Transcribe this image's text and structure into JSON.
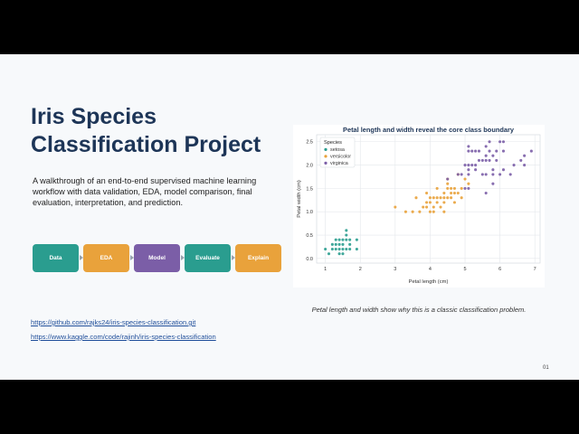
{
  "slide": {
    "title_lines": [
      "Iris Species",
      "Classification Project"
    ],
    "subtitle": "A walkthrough of an end-to-end supervised machine learning workflow with data validation, EDA, model comparison, final evaluation, interpretation, and prediction.",
    "pipeline": [
      {
        "label": "Data",
        "color": "#2a9d8f"
      },
      {
        "label": "EDA",
        "color": "#e9a23b"
      },
      {
        "label": "Model",
        "color": "#7b5ea7"
      },
      {
        "label": "Evaluate",
        "color": "#2a9d8f"
      },
      {
        "label": "Explain",
        "color": "#e9a23b"
      }
    ],
    "links": [
      "https://github.com/rajks24/iris-species-classification.git",
      "https://www.kaggle.com/code/rajinh/iris-species-classification"
    ],
    "caption": "Petal length and width show why this is a classic classification problem.",
    "page_number": "01"
  },
  "chart_data": {
    "type": "scatter",
    "title": "Petal length and width reveal the core class boundary",
    "xlabel": "Petal length (cm)",
    "ylabel": "Petal width (cm)",
    "xlim": [
      0.75,
      7.15
    ],
    "ylim": [
      -0.1,
      2.65
    ],
    "xticks": [
      "1",
      "2",
      "3",
      "4",
      "5",
      "6",
      "7"
    ],
    "yticks": [
      "0.0",
      "0.5",
      "1.0",
      "1.5",
      "2.0",
      "2.5"
    ],
    "grid": true,
    "legend_title": "Species",
    "legend_position": "top-left",
    "series": [
      {
        "name": "setosa",
        "color": "#2a9d8f",
        "points": [
          [
            1.0,
            0.2
          ],
          [
            1.1,
            0.1
          ],
          [
            1.2,
            0.2
          ],
          [
            1.3,
            0.2
          ],
          [
            1.3,
            0.3
          ],
          [
            1.4,
            0.2
          ],
          [
            1.4,
            0.1
          ],
          [
            1.4,
            0.3
          ],
          [
            1.5,
            0.2
          ],
          [
            1.5,
            0.1
          ],
          [
            1.5,
            0.4
          ],
          [
            1.6,
            0.2
          ],
          [
            1.6,
            0.4
          ],
          [
            1.6,
            0.6
          ],
          [
            1.7,
            0.4
          ],
          [
            1.7,
            0.3
          ],
          [
            1.9,
            0.2
          ],
          [
            1.9,
            0.4
          ],
          [
            1.6,
            0.5
          ],
          [
            1.5,
            0.3
          ],
          [
            1.3,
            0.4
          ],
          [
            1.4,
            0.4
          ],
          [
            1.7,
            0.2
          ],
          [
            1.2,
            0.3
          ]
        ]
      },
      {
        "name": "versicolor",
        "color": "#e9a23b",
        "points": [
          [
            3.0,
            1.1
          ],
          [
            3.3,
            1.0
          ],
          [
            3.5,
            1.0
          ],
          [
            3.6,
            1.3
          ],
          [
            3.7,
            1.0
          ],
          [
            3.8,
            1.1
          ],
          [
            3.9,
            1.1
          ],
          [
            3.9,
            1.2
          ],
          [
            3.9,
            1.4
          ],
          [
            4.0,
            1.0
          ],
          [
            4.0,
            1.2
          ],
          [
            4.0,
            1.3
          ],
          [
            4.1,
            1.0
          ],
          [
            4.1,
            1.3
          ],
          [
            4.2,
            1.2
          ],
          [
            4.2,
            1.3
          ],
          [
            4.2,
            1.5
          ],
          [
            4.3,
            1.3
          ],
          [
            4.4,
            1.2
          ],
          [
            4.4,
            1.3
          ],
          [
            4.4,
            1.4
          ],
          [
            4.5,
            1.3
          ],
          [
            4.5,
            1.5
          ],
          [
            4.5,
            1.6
          ],
          [
            4.6,
            1.3
          ],
          [
            4.6,
            1.4
          ],
          [
            4.6,
            1.5
          ],
          [
            4.7,
            1.2
          ],
          [
            4.7,
            1.4
          ],
          [
            4.7,
            1.5
          ],
          [
            4.8,
            1.4
          ],
          [
            4.8,
            1.8
          ],
          [
            4.9,
            1.5
          ],
          [
            5.0,
            1.7
          ],
          [
            5.1,
            1.6
          ],
          [
            4.5,
            1.7
          ],
          [
            4.4,
            1.0
          ],
          [
            4.3,
            1.1
          ],
          [
            4.1,
            1.1
          ],
          [
            4.9,
            1.3
          ]
        ]
      },
      {
        "name": "virginica",
        "color": "#7b5ea7",
        "points": [
          [
            4.5,
            1.7
          ],
          [
            4.8,
            1.8
          ],
          [
            4.9,
            1.8
          ],
          [
            5.0,
            1.5
          ],
          [
            5.0,
            2.0
          ],
          [
            5.1,
            1.5
          ],
          [
            5.1,
            1.8
          ],
          [
            5.1,
            1.9
          ],
          [
            5.1,
            2.0
          ],
          [
            5.1,
            2.3
          ],
          [
            5.1,
            2.4
          ],
          [
            5.2,
            2.0
          ],
          [
            5.2,
            2.3
          ],
          [
            5.3,
            1.9
          ],
          [
            5.3,
            2.3
          ],
          [
            5.4,
            2.1
          ],
          [
            5.4,
            2.3
          ],
          [
            5.5,
            1.8
          ],
          [
            5.5,
            2.1
          ],
          [
            5.6,
            1.4
          ],
          [
            5.6,
            1.8
          ],
          [
            5.6,
            2.1
          ],
          [
            5.6,
            2.2
          ],
          [
            5.6,
            2.4
          ],
          [
            5.7,
            2.1
          ],
          [
            5.7,
            2.3
          ],
          [
            5.7,
            2.5
          ],
          [
            5.8,
            1.6
          ],
          [
            5.8,
            1.8
          ],
          [
            5.8,
            2.2
          ],
          [
            5.9,
            2.1
          ],
          [
            5.9,
            2.3
          ],
          [
            6.0,
            1.8
          ],
          [
            6.0,
            2.5
          ],
          [
            6.1,
            1.9
          ],
          [
            6.1,
            2.3
          ],
          [
            6.1,
            2.5
          ],
          [
            6.3,
            1.8
          ],
          [
            6.4,
            2.0
          ],
          [
            6.6,
            2.1
          ],
          [
            6.7,
            2.0
          ],
          [
            6.7,
            2.2
          ],
          [
            6.9,
            2.3
          ],
          [
            5.3,
            2.0
          ],
          [
            5.8,
            1.9
          ]
        ]
      }
    ]
  }
}
